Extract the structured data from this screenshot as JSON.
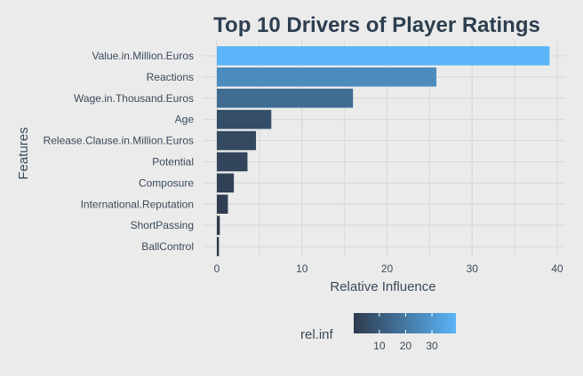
{
  "chart_data": {
    "type": "bar",
    "orientation": "horizontal",
    "title": "Top 10 Drivers of Player Ratings",
    "xlabel": "Relative Influence",
    "ylabel": "Features",
    "categories": [
      "Value.in.Million.Euros",
      "Reactions",
      "Wage.in.Thousand.Euros",
      "Age",
      "Release.Clause.in.Million.Euros",
      "Potential",
      "Composure",
      "International.Reputation",
      "ShortPassing",
      "BallControl"
    ],
    "values": [
      39.1,
      25.8,
      16.0,
      6.4,
      4.6,
      3.6,
      2.0,
      1.3,
      0.35,
      0.25
    ],
    "xlim": [
      0,
      40
    ],
    "xticks": [
      0,
      10,
      20,
      30,
      40
    ],
    "grid": true,
    "legend": {
      "title": "rel.inf",
      "placement": "bottom",
      "ticks": [
        10,
        20,
        30
      ],
      "range": [
        0.25,
        39.1
      ],
      "colors": [
        "#2e3b4d",
        "#5ab4f7"
      ]
    }
  }
}
